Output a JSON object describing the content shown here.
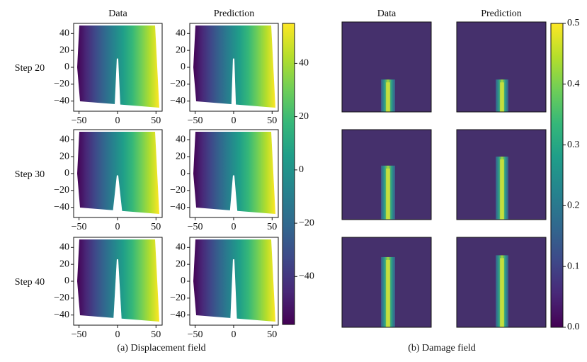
{
  "figure": {
    "displacement": {
      "caption": "(a) Displacement field",
      "columns": [
        "Data",
        "Prediction"
      ],
      "rows": [
        "Step 20",
        "Step 30",
        "Step 40"
      ],
      "xlim": [
        -57,
        58
      ],
      "ylim": [
        -52,
        52
      ],
      "xticks": [
        {
          "value": -50,
          "label": "−50"
        },
        0,
        50
      ],
      "yticks": [
        40,
        20,
        0,
        {
          "value": -20,
          "label": "−20"
        },
        {
          "value": -40,
          "label": "−40"
        }
      ],
      "colorbar_lim": [
        -58,
        55
      ],
      "colorbar_ticks": [
        40,
        20,
        0,
        {
          "value": -20,
          "label": "−20"
        },
        {
          "value": -40,
          "label": "−40"
        }
      ]
    },
    "damage": {
      "caption": "(b) Damage field",
      "columns": [
        "Data",
        "Prediction"
      ],
      "colorbar_lim": [
        0,
        0.5
      ],
      "colorbar_ticks": [
        0.5,
        0.4,
        0.3,
        0.2,
        0.1,
        {
          "value": 0,
          "label": "0.0"
        }
      ]
    }
  }
}
